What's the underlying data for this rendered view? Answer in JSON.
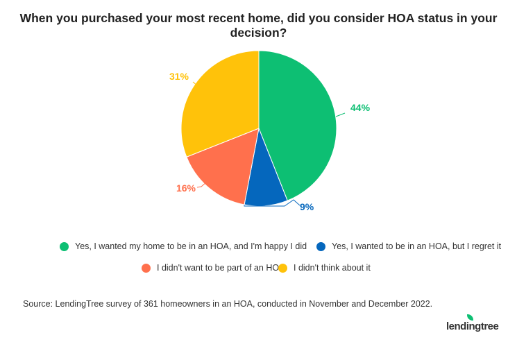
{
  "chart_data": {
    "type": "pie",
    "title": "When you purchased your most recent home, did you consider HOA status in your decision?",
    "slices": [
      {
        "name": "Yes, I wanted my home to be in an HOA, and I'm happy I did",
        "value": 44,
        "label": "44%",
        "color": "#0dbf73"
      },
      {
        "name": "Yes, I wanted to be in an HOA, but I regret it",
        "value": 9,
        "label": "9%",
        "color": "#0567bd"
      },
      {
        "name": "I didn't want to be part of an HOA",
        "value": 16,
        "label": "16%",
        "color": "#ff704d"
      },
      {
        "name": "I didn't think about it",
        "value": 31,
        "label": "31%",
        "color": "#ffc20a"
      }
    ],
    "legend_placement": "bottom"
  },
  "source": "Source: LendingTree survey of 361 homeowners in an HOA, conducted in November and December 2022.",
  "logo": "lendingtree"
}
